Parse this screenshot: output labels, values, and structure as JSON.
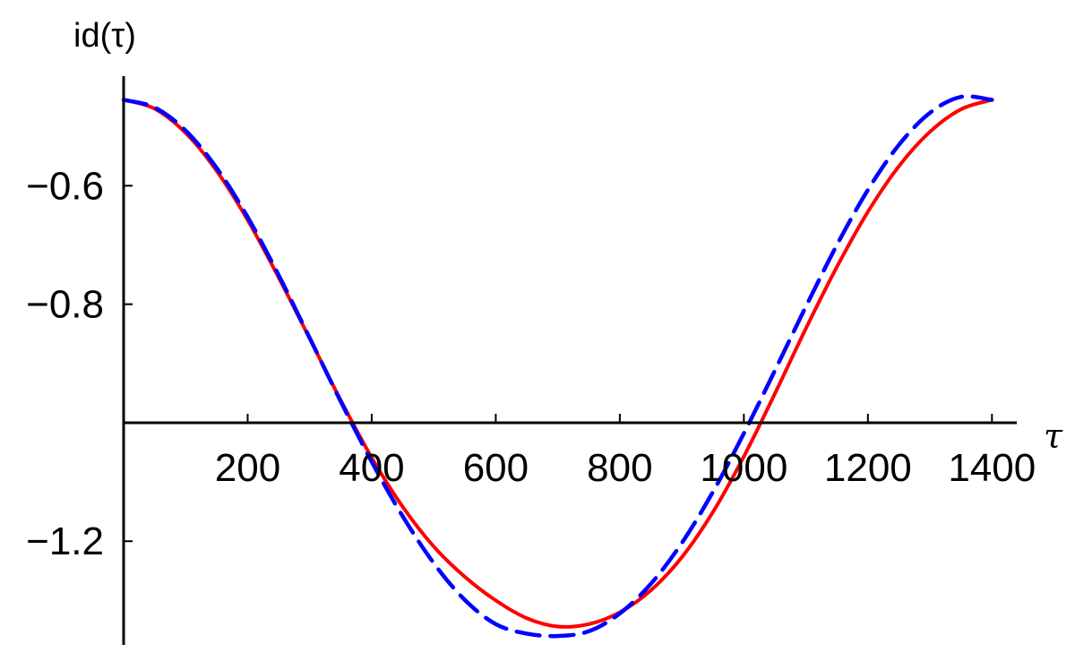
{
  "chart_data": {
    "type": "line",
    "xlabel": "τ",
    "ylabel": "id(τ)",
    "title": "",
    "xlim": [
      0,
      1440
    ],
    "ylim": [
      -1.375,
      -0.415
    ],
    "x_axis_crossing_y": -1.0,
    "grid": false,
    "x_ticks": [
      200,
      400,
      600,
      800,
      1000,
      1200,
      1400
    ],
    "x_tick_labels": [
      "200",
      "400",
      "600",
      "800",
      "1000",
      "1200",
      "1400"
    ],
    "y_ticks": [
      -0.6,
      -0.8,
      -1.2
    ],
    "y_tick_labels": [
      "−0.6",
      "−0.8",
      "−1.2"
    ],
    "series": [
      {
        "color": "#ff0000",
        "dash": "solid",
        "x": [
          0,
          50,
          100,
          150,
          200,
          250,
          300,
          350,
          400,
          450,
          500,
          550,
          600,
          650,
          700,
          750,
          800,
          850,
          900,
          950,
          1000,
          1050,
          1100,
          1150,
          1200,
          1250,
          1300,
          1350,
          1400
        ],
        "y": [
          -0.455,
          -0.47,
          -0.511,
          -0.575,
          -0.658,
          -0.755,
          -0.858,
          -0.962,
          -1.059,
          -1.142,
          -1.209,
          -1.26,
          -1.3,
          -1.33,
          -1.344,
          -1.34,
          -1.32,
          -1.283,
          -1.227,
          -1.151,
          -1.057,
          -0.951,
          -0.841,
          -0.737,
          -0.644,
          -0.567,
          -0.509,
          -0.471,
          -0.455
        ]
      },
      {
        "color": "#0000ff",
        "dash": "dashed",
        "x": [
          0,
          50,
          100,
          150,
          200,
          250,
          300,
          350,
          400,
          450,
          500,
          550,
          600,
          650,
          700,
          750,
          800,
          850,
          900,
          950,
          1000,
          1050,
          1100,
          1150,
          1200,
          1250,
          1300,
          1350,
          1400
        ],
        "y": [
          -0.455,
          -0.468,
          -0.507,
          -0.57,
          -0.653,
          -0.751,
          -0.857,
          -0.964,
          -1.066,
          -1.158,
          -1.237,
          -1.299,
          -1.34,
          -1.356,
          -1.36,
          -1.352,
          -1.322,
          -1.272,
          -1.203,
          -1.117,
          -1.018,
          -0.912,
          -0.804,
          -0.7,
          -0.607,
          -0.531,
          -0.477,
          -0.45,
          -0.455
        ]
      }
    ]
  }
}
